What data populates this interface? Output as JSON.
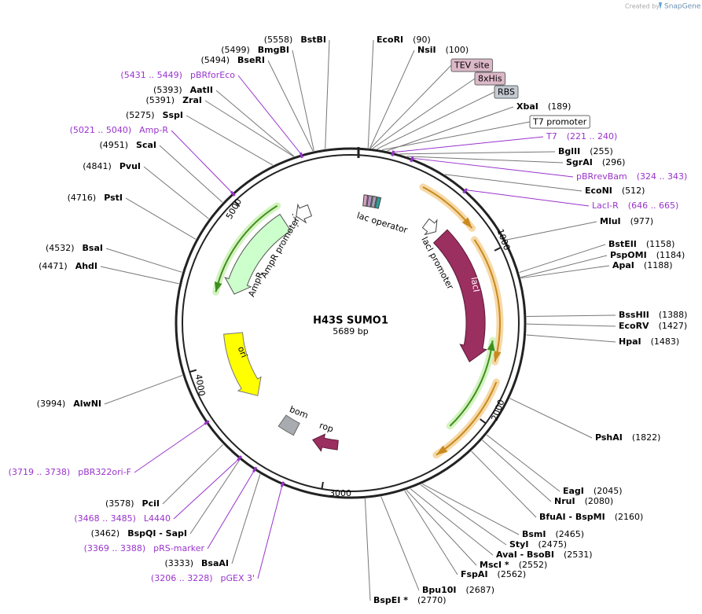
{
  "header": {
    "credit": "Created by",
    "brand": "SnapGene"
  },
  "map": {
    "name": "H43S SUMO1",
    "size": "5689 bp",
    "ring_ticks": [
      "1000",
      "2000",
      "3000",
      "4000",
      "5000"
    ]
  },
  "sites": [
    {
      "name": "EcoRI",
      "pos": "(90)"
    },
    {
      "name": "NsiI",
      "pos": "(100)"
    },
    {
      "name": "XbaI",
      "pos": "(189)"
    },
    {
      "name": "BglII",
      "pos": "(255)"
    },
    {
      "name": "SgrAI",
      "pos": "(296)"
    },
    {
      "name": "EcoNI",
      "pos": "(512)"
    },
    {
      "name": "MluI",
      "pos": "(977)"
    },
    {
      "name": "BstEII",
      "pos": "(1158)"
    },
    {
      "name": "PspOMI",
      "pos": "(1184)"
    },
    {
      "name": "ApaI",
      "pos": "(1188)"
    },
    {
      "name": "BssHII",
      "pos": "(1388)"
    },
    {
      "name": "EcoRV",
      "pos": "(1427)"
    },
    {
      "name": "HpaI",
      "pos": "(1483)"
    },
    {
      "name": "PshAI",
      "pos": "(1822)"
    },
    {
      "name": "EagI",
      "pos": "(2045)"
    },
    {
      "name": "NruI",
      "pos": "(2080)"
    },
    {
      "name": "BfuAI - BspMI",
      "pos": "(2160)"
    },
    {
      "name": "BsmI",
      "pos": "(2465)"
    },
    {
      "name": "StyI",
      "pos": "(2475)"
    },
    {
      "name": "AvaI - BsoBI",
      "pos": "(2531)"
    },
    {
      "name": "MscI *",
      "pos": "(2552)"
    },
    {
      "name": "FspAI",
      "pos": "(2562)"
    },
    {
      "name": "Bpu10I",
      "pos": "(2687)"
    },
    {
      "name": "BspEI *",
      "pos": "(2770)"
    },
    {
      "name": "BstBI",
      "pos": "(5558)"
    },
    {
      "name": "BmgBI",
      "pos": "(5499)"
    },
    {
      "name": "BseRI",
      "pos": "(5494)"
    },
    {
      "name": "AatII",
      "pos": "(5393)"
    },
    {
      "name": "ZraI",
      "pos": "(5391)"
    },
    {
      "name": "SspI",
      "pos": "(5275)"
    },
    {
      "name": "ScaI",
      "pos": "(4951)"
    },
    {
      "name": "PvuI",
      "pos": "(4841)"
    },
    {
      "name": "PstI",
      "pos": "(4716)"
    },
    {
      "name": "BsaI",
      "pos": "(4532)"
    },
    {
      "name": "AhdI",
      "pos": "(4471)"
    },
    {
      "name": "AlwNI",
      "pos": "(3994)"
    },
    {
      "name": "PciI",
      "pos": "(3578)"
    },
    {
      "name": "BspQI - SapI",
      "pos": "(3462)"
    },
    {
      "name": "BsaAI",
      "pos": "(3333)"
    }
  ],
  "primers": [
    {
      "name": "T7",
      "pos": "(221 .. 240)"
    },
    {
      "name": "pBRrevBam",
      "pos": "(324 .. 343)"
    },
    {
      "name": "LacI-R",
      "pos": "(646 .. 665)"
    },
    {
      "name": "pBRforEco",
      "pos": "(5431 .. 5449)"
    },
    {
      "name": "Amp-R",
      "pos": "(5021 .. 5040)"
    },
    {
      "name": "pBR322ori-F",
      "pos": "(3719 .. 3738)"
    },
    {
      "name": "L4440",
      "pos": "(3468 .. 3485)"
    },
    {
      "name": "pRS-marker",
      "pos": "(3369 .. 3388)"
    },
    {
      "name": "pGEX 3'",
      "pos": "(3206 .. 3228)"
    }
  ],
  "tags": [
    "TEV site",
    "8xHis",
    "RBS",
    "T7 promoter"
  ],
  "features": [
    "lacI",
    "lacI promoter",
    "lac operator",
    "AmpR",
    "AmpR promoter",
    "ori",
    "bom",
    "rop"
  ]
}
